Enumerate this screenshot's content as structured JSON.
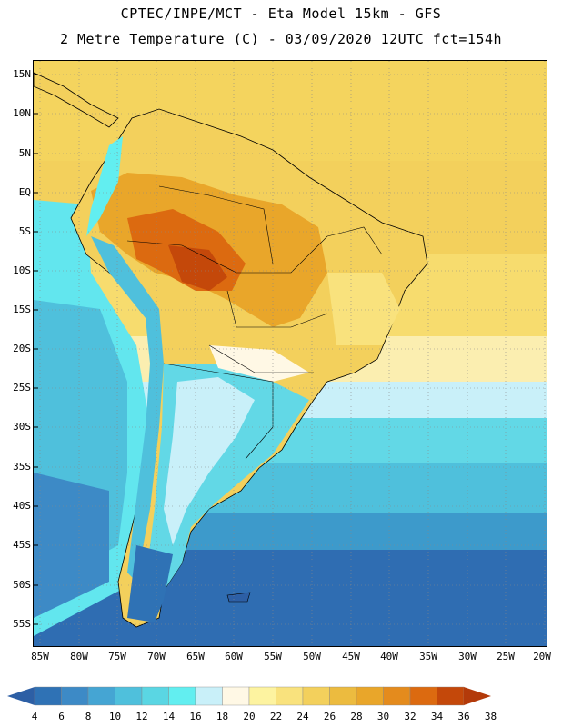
{
  "header": {
    "line1": "CPTEC/INPE/MCT -  Eta Model 15km - GFS",
    "line2": "2 Metre Temperature (C) - 03/09/2020 12UTC fct=154h"
  },
  "map": {
    "lat_labels": [
      "15N",
      "10N",
      "5N",
      "EQ",
      "5S",
      "10S",
      "15S",
      "20S",
      "25S",
      "30S",
      "35S",
      "40S",
      "45S",
      "50S",
      "55S"
    ],
    "lon_labels": [
      "85W",
      "80W",
      "75W",
      "70W",
      "65W",
      "60W",
      "55W",
      "50W",
      "45W",
      "40W",
      "35W",
      "30W",
      "25W",
      "20W"
    ]
  },
  "legend": {
    "labels": [
      "4",
      "6",
      "8",
      "10",
      "12",
      "14",
      "16",
      "18",
      "20",
      "22",
      "24",
      "26",
      "28",
      "30",
      "32",
      "34",
      "36",
      "38"
    ],
    "colors": [
      "#2d5fa5",
      "#2f72b5",
      "#3d8ac6",
      "#45a5d3",
      "#4fc0dc",
      "#5ad6e3",
      "#62eef0",
      "#c9f0f9",
      "#fff8e5",
      "#fdf3a0",
      "#f9e27d",
      "#f3d05c",
      "#ecbb3f",
      "#e9a62a",
      "#e48b1d",
      "#dc6a10",
      "#c4480a",
      "#b33a0a"
    ]
  }
}
